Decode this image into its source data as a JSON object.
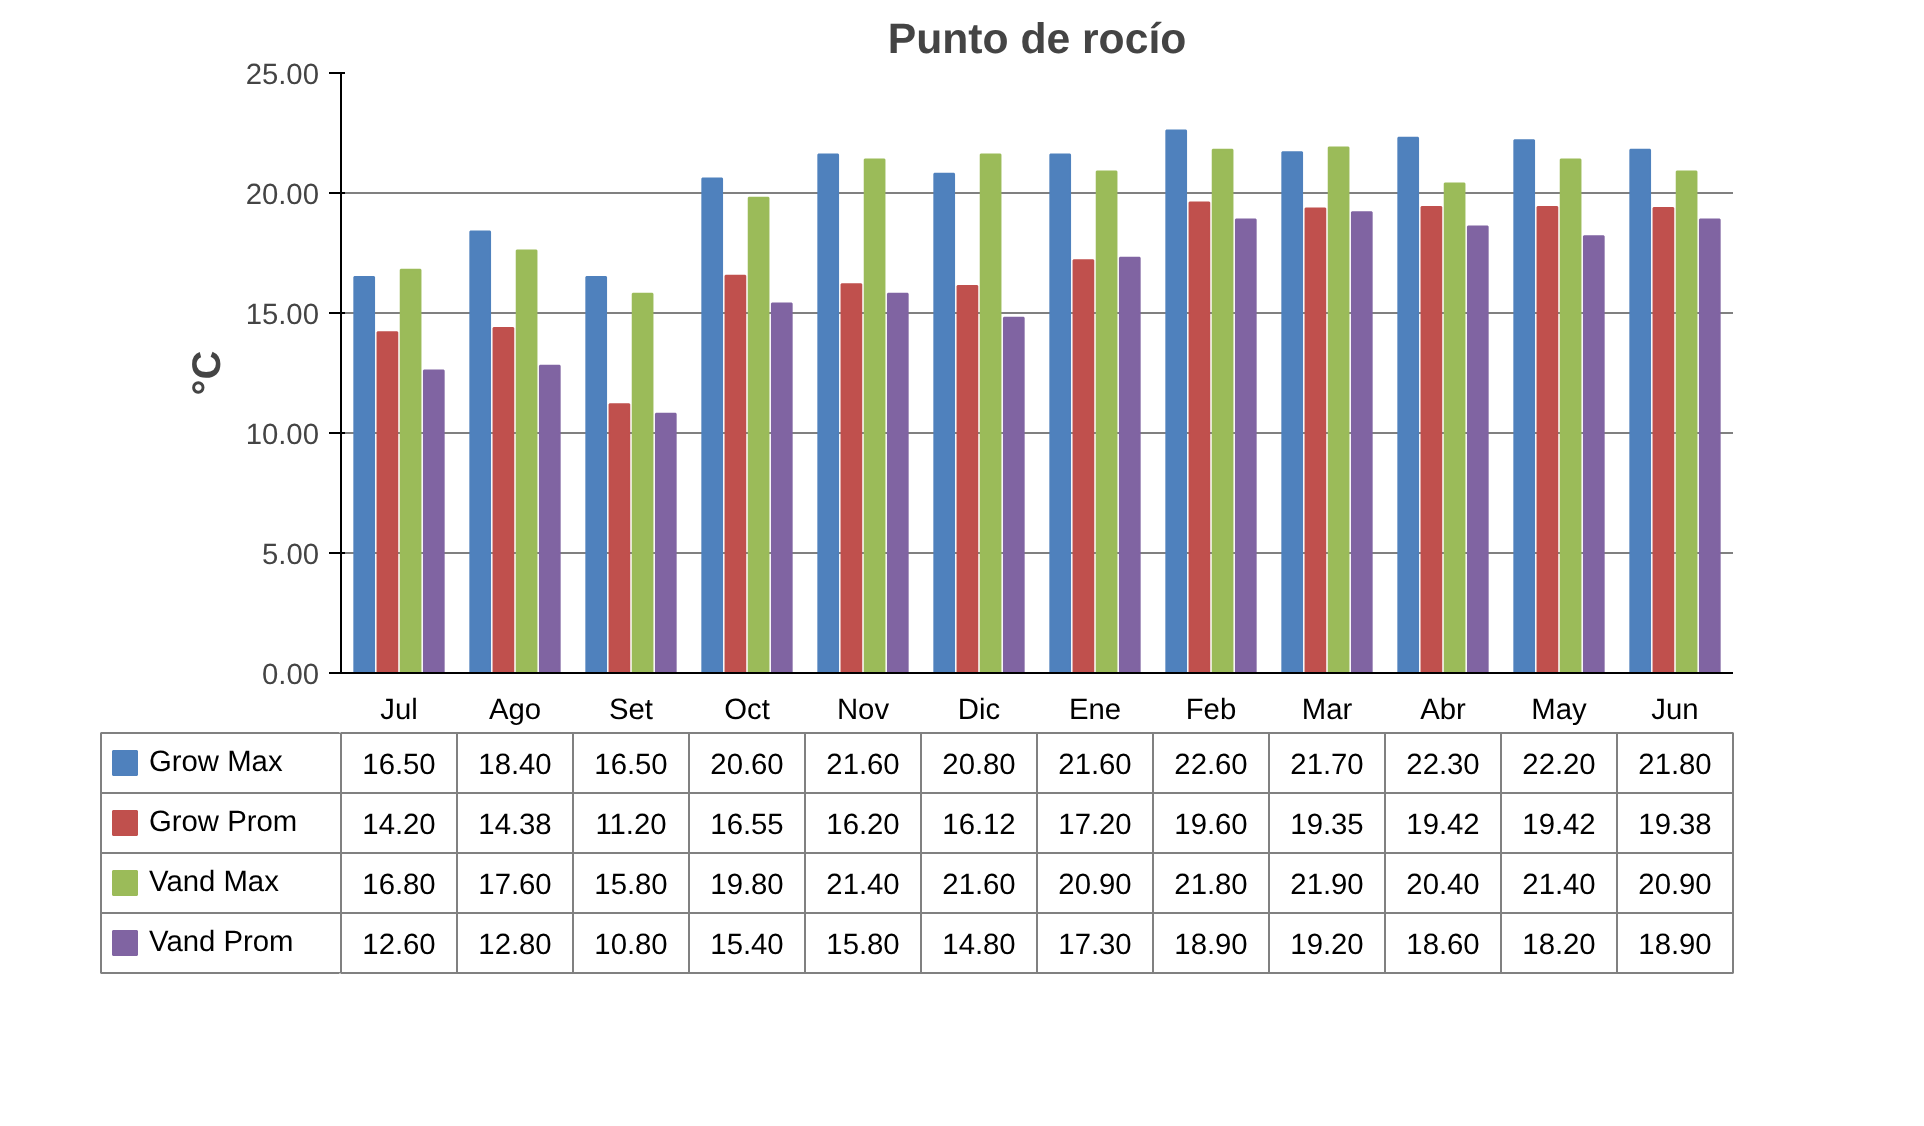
{
  "chart_data": {
    "type": "bar",
    "title": "Punto de rocío",
    "ylabel": "°C",
    "categories": [
      "Jul",
      "Ago",
      "Set",
      "Oct",
      "Nov",
      "Dic",
      "Ene",
      "Feb",
      "Mar",
      "Abr",
      "May",
      "Jun"
    ],
    "series": [
      {
        "name": "Grow Max",
        "color": "#4f81bd",
        "values": [
          16.5,
          18.4,
          16.5,
          20.6,
          21.6,
          20.8,
          21.6,
          22.6,
          21.7,
          22.3,
          22.2,
          21.8
        ]
      },
      {
        "name": "Grow Prom",
        "color": "#c0504d",
        "values": [
          14.2,
          14.38,
          11.2,
          16.55,
          16.2,
          16.12,
          17.2,
          19.6,
          19.35,
          19.42,
          19.42,
          19.38
        ]
      },
      {
        "name": "Vand Max",
        "color": "#9bbb59",
        "values": [
          16.8,
          17.6,
          15.8,
          19.8,
          21.4,
          21.6,
          20.9,
          21.8,
          21.9,
          20.4,
          21.4,
          20.9
        ]
      },
      {
        "name": "Vand Prom",
        "color": "#8064a2",
        "values": [
          12.6,
          12.8,
          10.8,
          15.4,
          15.8,
          14.8,
          17.3,
          18.9,
          19.2,
          18.6,
          18.2,
          18.9
        ]
      }
    ],
    "ylim": [
      0,
      25
    ],
    "yticks": [
      {
        "value": 0,
        "label": "0.00"
      },
      {
        "value": 5,
        "label": "5.00"
      },
      {
        "value": 10,
        "label": "10.00"
      },
      {
        "value": 15,
        "label": "15.00"
      },
      {
        "value": 20,
        "label": "20.00"
      },
      {
        "value": 25,
        "label": "25.00"
      }
    ],
    "value_labels": [
      [
        "16.50",
        "18.40",
        "16.50",
        "20.60",
        "21.60",
        "20.80",
        "21.60",
        "22.60",
        "21.70",
        "22.30",
        "22.20",
        "21.80"
      ],
      [
        "14.20",
        "14.38",
        "11.20",
        "16.55",
        "16.20",
        "16.12",
        "17.20",
        "19.60",
        "19.35",
        "19.42",
        "19.42",
        "19.38"
      ],
      [
        "16.80",
        "17.60",
        "15.80",
        "19.80",
        "21.40",
        "21.60",
        "20.90",
        "21.80",
        "21.90",
        "20.40",
        "21.40",
        "20.90"
      ],
      [
        "12.60",
        "12.80",
        "10.80",
        "15.40",
        "15.80",
        "14.80",
        "17.30",
        "18.90",
        "19.20",
        "18.60",
        "18.20",
        "18.90"
      ]
    ],
    "grid": "y",
    "legend": "bottom"
  }
}
